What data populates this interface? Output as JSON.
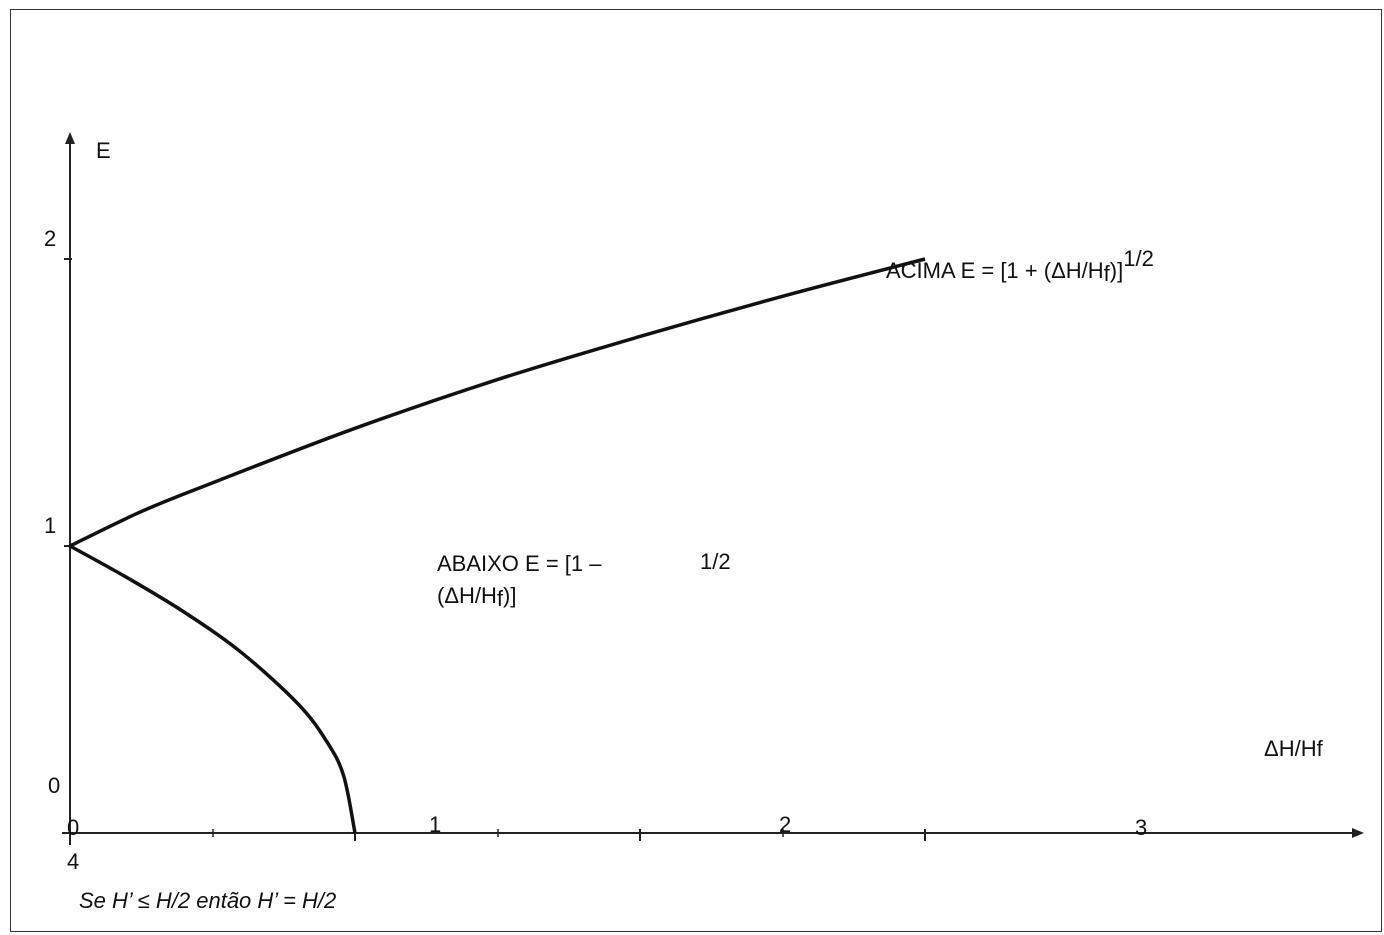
{
  "chart_data": {
    "type": "line",
    "ylabel": "E",
    "xlabel": "ΔH/Hf",
    "xlim": [
      0,
      3.5
    ],
    "ylim": [
      0,
      2.3
    ],
    "x_ticks": [
      0,
      1,
      2,
      3
    ],
    "y_ticks": [
      0,
      1,
      2
    ],
    "extra_tick_label": "4",
    "series": [
      {
        "label_main": "ACIMA E = [1 + (ΔH/H",
        "label_sub": "f",
        "label_close": ")]",
        "label_sup": "1/2",
        "x": [
          0,
          0.25,
          0.5,
          1,
          1.5,
          2,
          2.5,
          3
        ],
        "y": [
          1,
          1.12,
          1.22,
          1.41,
          1.58,
          1.73,
          1.87,
          2.0
        ]
      },
      {
        "label_line1": "ABAIXO E = [1 –",
        "label_sup": "1/2",
        "label_line2_main": "(ΔH/H",
        "label_line2_sub": "f",
        "label_line2_close": ")]",
        "x": [
          0,
          0.2,
          0.4,
          0.6,
          0.8,
          0.9,
          0.96,
          1.0
        ],
        "y": [
          1,
          0.89,
          0.77,
          0.63,
          0.45,
          0.32,
          0.2,
          0
        ]
      }
    ],
    "footnote": "Se H’ ≤ H/2 então H’ = H/2"
  }
}
